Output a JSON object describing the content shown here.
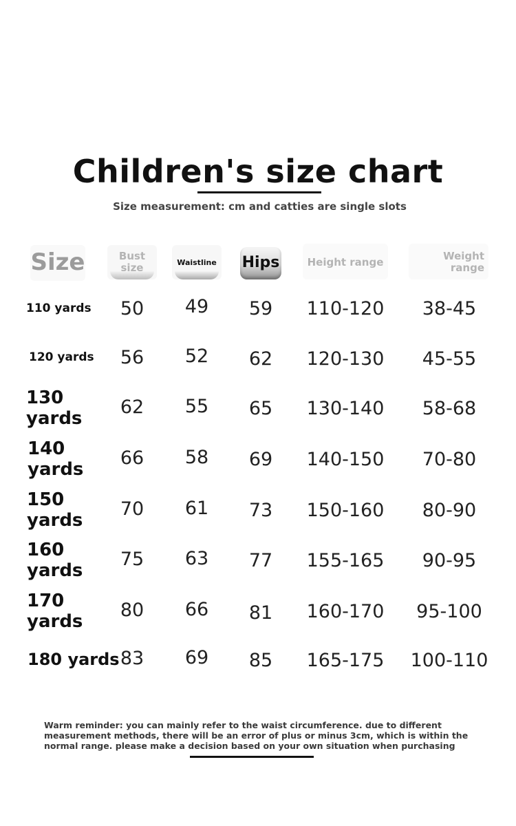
{
  "title": "Children's size chart",
  "subtitle": "Size measurement: cm and catties are single slots",
  "headers": {
    "size": "Size",
    "bust_line1": "Bust",
    "bust_line2": "size",
    "waist": "Waistline",
    "hips": "Hips",
    "height": "Height range",
    "weight_line1": "Weight",
    "weight_line2": "range"
  },
  "rows": [
    {
      "size": "110 yards",
      "bust": "50",
      "waist": "49",
      "hips": "59",
      "height": "110-120",
      "weight": "38-45"
    },
    {
      "size": "120 yards",
      "bust": "56",
      "waist": "52",
      "hips": "62",
      "height": "120-130",
      "weight": "45-55"
    },
    {
      "size": "130 yards",
      "bust": "62",
      "waist": "55",
      "hips": "65",
      "height": "130-140",
      "weight": "58-68"
    },
    {
      "size": "140 yards",
      "bust": "66",
      "waist": "58",
      "hips": "69",
      "height": "140-150",
      "weight": "70-80"
    },
    {
      "size": "150 yards",
      "bust": "70",
      "waist": "61",
      "hips": "73",
      "height": "150-160",
      "weight": "80-90"
    },
    {
      "size": "160 yards",
      "bust": "75",
      "waist": "63",
      "hips": "77",
      "height": "155-165",
      "weight": "90-95"
    },
    {
      "size": "170 yards",
      "bust": "80",
      "waist": "66",
      "hips": "81",
      "height": "160-170",
      "weight": "95-100"
    },
    {
      "size": "180 yards",
      "bust": "83",
      "waist": "69",
      "hips": "85",
      "height": "165-175",
      "weight": "100-110"
    }
  ],
  "reminder": {
    "line1": "Warm reminder: you can mainly refer to the waist circumference. due to different",
    "line2": "measurement methods, there will be an error of plus or minus 3cm, which is within the",
    "line3": "normal range. please make a decision based on your own situation when purchasing"
  }
}
